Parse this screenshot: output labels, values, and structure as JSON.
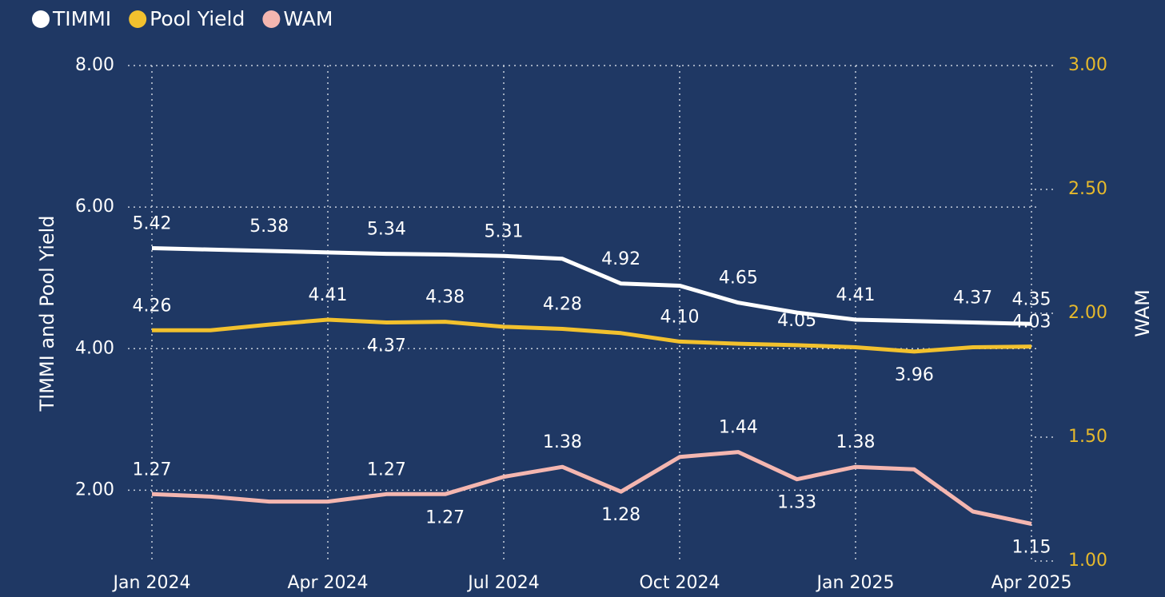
{
  "chart_data": {
    "type": "line",
    "y_label": "TIMMI and Pool Yield",
    "y2_label": "WAM",
    "categories": [
      "Jan 2024",
      null,
      null,
      "Apr 2024",
      null,
      null,
      "Jul 2024",
      null,
      null,
      "Oct 2024",
      null,
      null,
      "Jan 2025",
      null,
      null,
      "Apr 2025"
    ],
    "series": [
      {
        "name": "TIMMI",
        "color": "#ffffff",
        "values": [
          5.42,
          5.4,
          5.38,
          5.36,
          5.34,
          5.33,
          5.31,
          5.27,
          4.92,
          4.89,
          4.65,
          4.51,
          4.41,
          4.39,
          4.37,
          4.35
        ],
        "value_labels": [
          "5.42",
          null,
          "5.38",
          null,
          "5.34",
          null,
          "5.31",
          null,
          "4.92",
          null,
          "4.65",
          null,
          "4.41",
          null,
          "4.37",
          "4.35"
        ]
      },
      {
        "name": "Pool Yield",
        "color": "#f2c12e",
        "values": [
          4.26,
          4.26,
          4.34,
          4.41,
          4.37,
          4.38,
          4.31,
          4.28,
          4.22,
          4.1,
          4.07,
          4.05,
          4.02,
          3.96,
          4.02,
          4.03
        ],
        "value_labels": [
          "4.26",
          null,
          null,
          "4.41",
          "4.37",
          "4.38",
          null,
          "4.28",
          null,
          "4.10",
          null,
          "4.05",
          null,
          "3.96",
          null,
          "4.03"
        ]
      },
      {
        "name": "WAM",
        "color": "#f4b6b0",
        "axis": "y2",
        "values": [
          1.27,
          1.26,
          1.24,
          1.24,
          1.27,
          1.27,
          1.34,
          1.38,
          1.28,
          1.42,
          1.44,
          1.33,
          1.38,
          1.37,
          1.2,
          1.15
        ],
        "value_labels": [
          "1.27",
          null,
          null,
          null,
          "1.27",
          "1.27",
          null,
          "1.38",
          "1.28",
          null,
          "1.44",
          "1.33",
          "1.38",
          null,
          null,
          "1.15"
        ]
      }
    ],
    "ylim": [
      1,
      8
    ],
    "yticks": [
      {
        "value": 2,
        "label": "2.00"
      },
      {
        "value": 4,
        "label": "4.00"
      },
      {
        "value": 6,
        "label": "6.00"
      },
      {
        "value": 8,
        "label": "8.00"
      }
    ],
    "y2lim": [
      1,
      3
    ],
    "y2ticks": [
      {
        "value": 1,
        "label": "1.00"
      },
      {
        "value": 1.5,
        "label": "1.50"
      },
      {
        "value": 2,
        "label": "2.00"
      },
      {
        "value": 2.5,
        "label": "2.50"
      },
      {
        "value": 3,
        "label": "3.00"
      }
    ],
    "grid": true,
    "legend": "top-left"
  }
}
